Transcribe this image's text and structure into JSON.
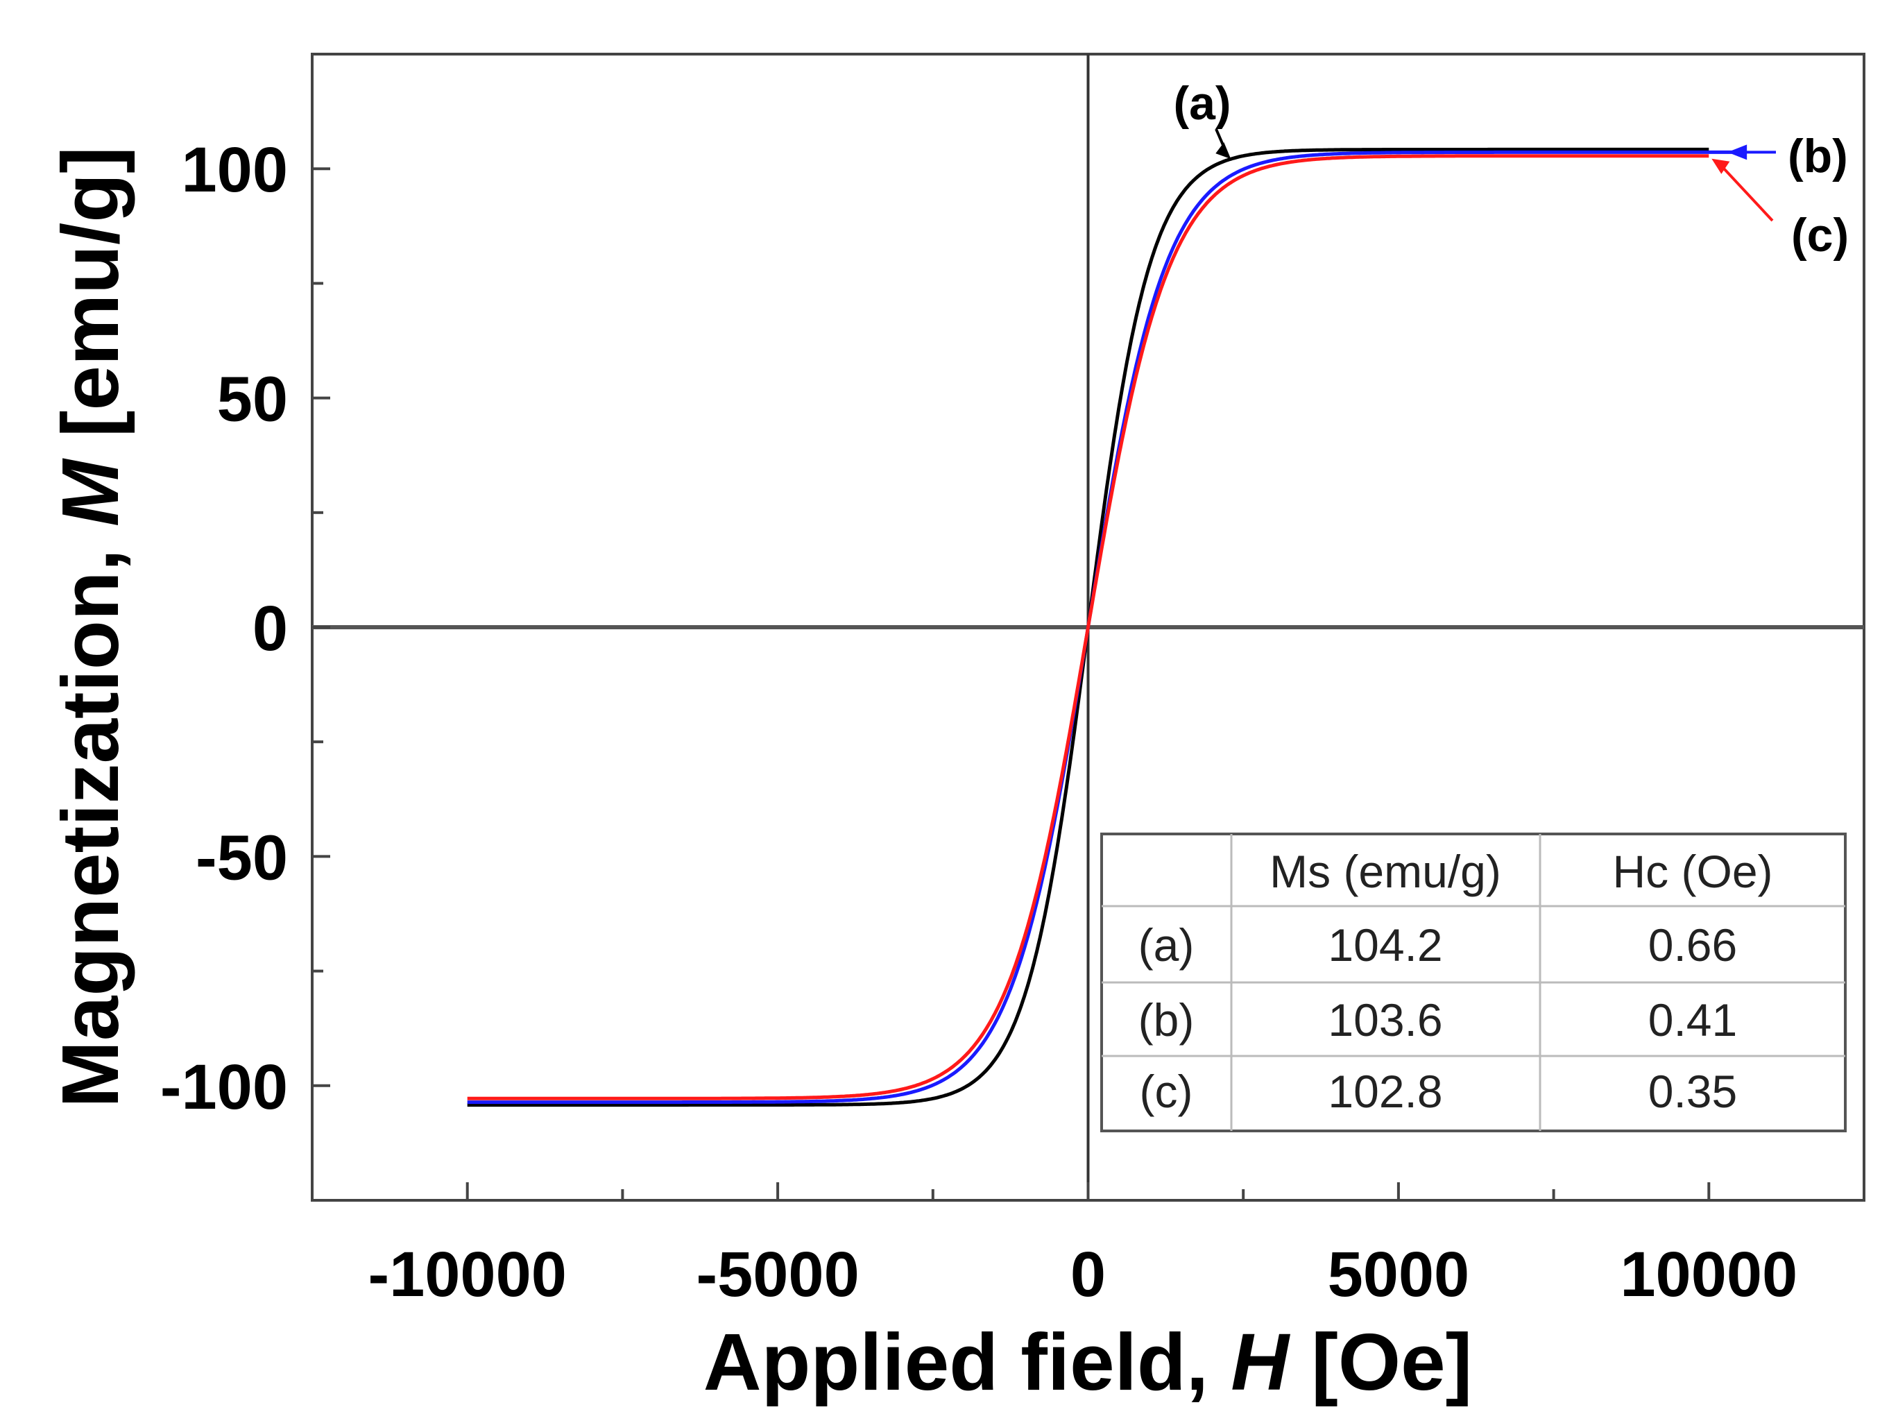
{
  "chart_data": {
    "type": "line",
    "title": "",
    "xlabel_prefix": "Applied field, ",
    "xlabel_var": "H",
    "xlabel_suffix": " [Oe]",
    "ylabel_prefix": "Magnetization, ",
    "ylabel_var": "M",
    "ylabel_suffix": " [emu/g]",
    "xlim": [
      -12500,
      12500
    ],
    "ylim": [
      -125,
      125
    ],
    "xticks": [
      -10000,
      -5000,
      0,
      5000,
      10000
    ],
    "xtick_labels": [
      "-10000",
      "-5000",
      "0",
      "5000",
      "10000"
    ],
    "yticks": [
      -100,
      -50,
      0,
      50,
      100
    ],
    "ytick_labels": [
      "-100",
      "-50",
      "0",
      "50",
      "100"
    ],
    "x_minor_step": 2500,
    "y_minor_step": 25,
    "series": [
      {
        "name": "(a)",
        "color": "#000000",
        "ms": 104.2,
        "hc": 0.66,
        "h0": 1000,
        "x_range": [
          -10000,
          10000
        ]
      },
      {
        "name": "(b)",
        "color": "#1a1aff",
        "ms": 103.6,
        "hc": 0.41,
        "h0": 1250,
        "x_range": [
          -10000,
          10500
        ]
      },
      {
        "name": "(c)",
        "color": "#ff1a1a",
        "ms": 102.8,
        "hc": 0.35,
        "h0": 1300,
        "x_range": [
          -10000,
          10000
        ]
      }
    ],
    "annotations": [
      {
        "text": "(a)",
        "series": "(a)"
      },
      {
        "text": "(b)",
        "series": "(b)"
      },
      {
        "text": "(c)",
        "series": "(c)"
      }
    ],
    "table": {
      "headers": [
        "",
        "Ms (emu/g)",
        "Hc (Oe)"
      ],
      "rows": [
        {
          "label": "(a)",
          "label_color": "#222222",
          "ms": "104.2",
          "hc": "0.66"
        },
        {
          "label": "(b)",
          "label_color": "#1a1aff",
          "ms": "103.6",
          "hc": "0.41"
        },
        {
          "label": "(c)",
          "label_color": "#ff1a1a",
          "ms": "102.8",
          "hc": "0.35"
        }
      ]
    }
  }
}
